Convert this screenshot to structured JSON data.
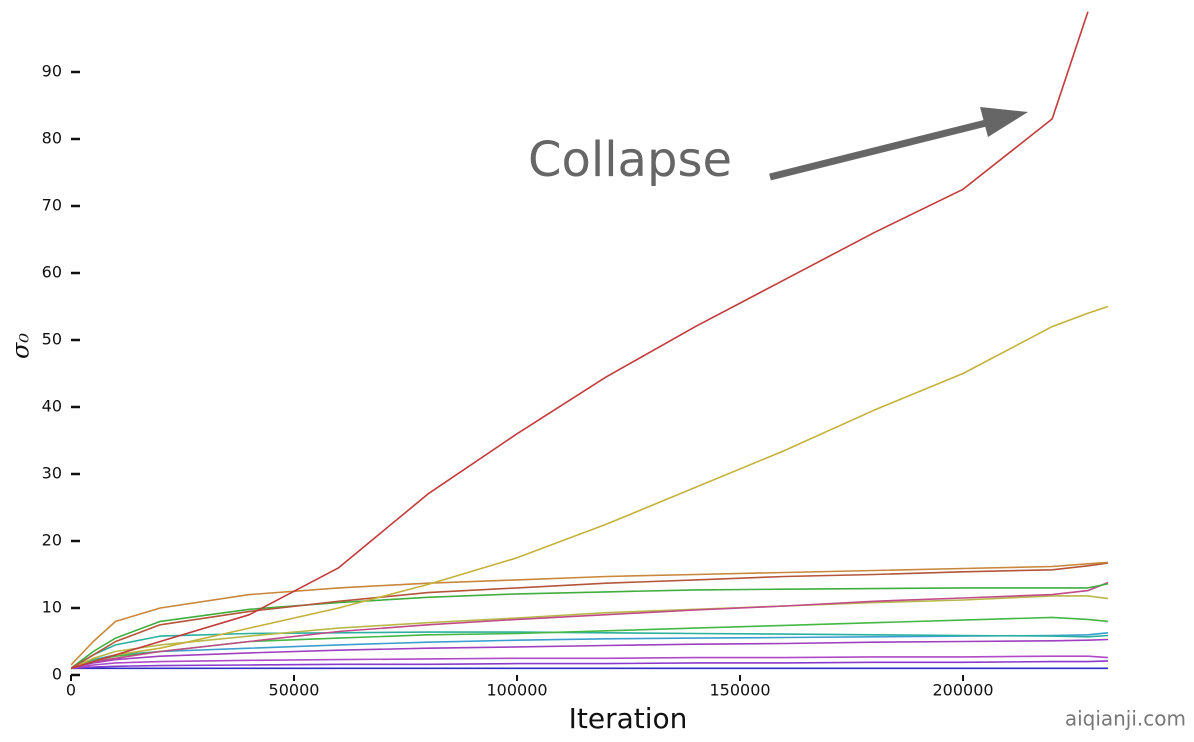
{
  "chart_data": {
    "type": "line",
    "x_label": "Iteration",
    "y_label": "σ₀",
    "annotation": "Collapse",
    "watermark": "aiqianji.com",
    "x": [
      0,
      5000,
      10000,
      20000,
      40000,
      60000,
      80000,
      100000,
      120000,
      140000,
      160000,
      180000,
      200000,
      220000,
      228000,
      232500
    ],
    "xlim": [
      0,
      232500
    ],
    "xticks": [
      0,
      50000,
      100000,
      150000,
      200000
    ],
    "ylim": [
      0,
      100
    ],
    "yticks": [
      0,
      10,
      20,
      30,
      40,
      50,
      60,
      70,
      80,
      90
    ],
    "series": [
      {
        "color": "#2f2fc8",
        "values": [
          1,
          1,
          1,
          1,
          1,
          1,
          1,
          1,
          1,
          1,
          1,
          1,
          1,
          1,
          1,
          1
        ]
      },
      {
        "color": "#8a3acd",
        "values": [
          1,
          1.2,
          1.3,
          1.4,
          1.5,
          1.6,
          1.6,
          1.7,
          1.7,
          1.8,
          1.8,
          1.9,
          1.9,
          2,
          2,
          2.1
        ]
      },
      {
        "color": "#b04ac8",
        "values": [
          1,
          1.5,
          1.8,
          2,
          2.2,
          2.3,
          2.4,
          2.5,
          2.5,
          2.6,
          2.6,
          2.7,
          2.7,
          2.8,
          2.8,
          2.6
        ]
      },
      {
        "color": "#a040c0",
        "values": [
          1,
          1.8,
          2.3,
          2.8,
          3.3,
          3.7,
          4,
          4.2,
          4.4,
          4.6,
          4.7,
          4.9,
          5,
          5.1,
          5.2,
          5.3
        ]
      },
      {
        "color": "#3a9fd0",
        "values": [
          1,
          2.3,
          3,
          3.5,
          4,
          4.5,
          4.9,
          5.2,
          5.4,
          5.5,
          5.6,
          5.7,
          5.8,
          5.9,
          6,
          6.3
        ]
      },
      {
        "color": "#2ab0a0",
        "values": [
          1,
          3,
          4.5,
          5.8,
          6.2,
          6.3,
          6.4,
          6.4,
          6.3,
          6.2,
          6.1,
          6,
          5.9,
          5.8,
          5.7,
          5.9
        ]
      },
      {
        "color": "#44b844",
        "values": [
          1,
          2.2,
          2.8,
          3.5,
          5,
          5.5,
          6,
          6.2,
          6.6,
          7,
          7.4,
          7.8,
          8.2,
          8.6,
          8.3,
          8
        ]
      },
      {
        "color": "#b8b84a",
        "values": [
          1,
          2.5,
          3.5,
          4.5,
          5.8,
          7,
          7.8,
          8.5,
          9.3,
          9.8,
          10.3,
          10.8,
          11.2,
          11.8,
          11.8,
          11.4
        ]
      },
      {
        "color": "#c04a8a",
        "values": [
          1,
          2,
          2.5,
          3.5,
          5,
          6.5,
          7.5,
          8.3,
          9,
          9.7,
          10.3,
          11,
          11.5,
          12,
          12.6,
          13.8
        ]
      },
      {
        "color": "#3fae3f",
        "values": [
          1,
          3.5,
          5.5,
          8,
          9.8,
          10.8,
          11.6,
          12.1,
          12.4,
          12.7,
          12.8,
          12.9,
          13,
          13,
          13,
          13.6
        ]
      },
      {
        "color": "#b5553a",
        "values": [
          1,
          3,
          5,
          7.5,
          9.5,
          11,
          12.3,
          13,
          13.7,
          14.2,
          14.7,
          15,
          15.4,
          15.7,
          16.3,
          16.7
        ]
      },
      {
        "color": "#c8873a",
        "values": [
          1.5,
          5,
          8,
          10,
          12,
          13,
          13.7,
          14.2,
          14.7,
          15,
          15.3,
          15.6,
          15.9,
          16.2,
          16.6,
          16.8
        ]
      },
      {
        "color": "#c4b13a",
        "values": [
          1,
          2,
          3,
          4,
          7,
          10,
          13.5,
          17.5,
          22.5,
          28,
          33.5,
          39.5,
          45,
          52,
          54,
          55
        ]
      },
      {
        "color": "#c23b3b",
        "values": [
          1,
          2,
          3,
          5,
          9,
          16,
          27,
          36,
          44.5,
          52,
          59,
          66,
          72.5,
          83,
          99,
          null
        ]
      }
    ]
  }
}
